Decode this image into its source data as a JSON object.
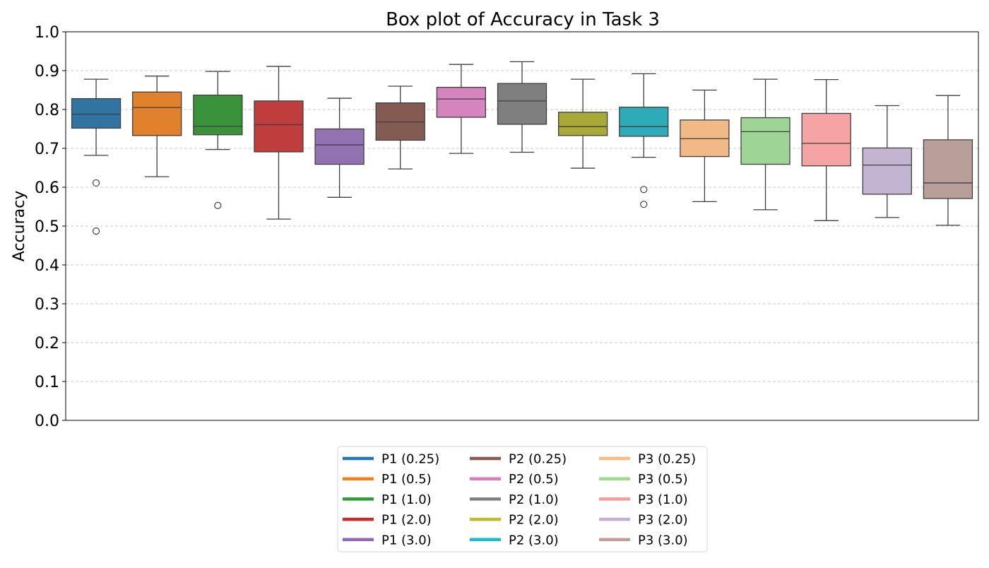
{
  "chart_data": {
    "type": "box",
    "title": "Box plot of Accuracy in Task 3",
    "xlabel": "",
    "ylabel": "Accuracy",
    "ylim": [
      0.0,
      1.0
    ],
    "yticks": [
      0.0,
      0.1,
      0.2,
      0.3,
      0.4,
      0.5,
      0.6,
      0.7,
      0.8,
      0.9,
      1.0
    ],
    "ytick_labels": [
      "0.0",
      "0.1",
      "0.2",
      "0.3",
      "0.4",
      "0.5",
      "0.6",
      "0.7",
      "0.8",
      "0.9",
      "1.0"
    ],
    "grid": "horizontal dashed",
    "legend_position": "bottom-center",
    "series": [
      {
        "name": "P1 (0.25)",
        "color": "#1f77b4",
        "fill": "#3274a1",
        "whisker_low": 0.682,
        "q1": 0.752,
        "median": 0.788,
        "q3": 0.828,
        "whisker_high": 0.878,
        "outliers": [
          0.611,
          0.487
        ]
      },
      {
        "name": "P1 (0.5)",
        "color": "#ff7f0e",
        "fill": "#e1812c",
        "whisker_low": 0.627,
        "q1": 0.733,
        "median": 0.805,
        "q3": 0.845,
        "whisker_high": 0.886,
        "outliers": []
      },
      {
        "name": "P1 (1.0)",
        "color": "#2ca02c",
        "fill": "#3a923a",
        "whisker_low": 0.697,
        "q1": 0.735,
        "median": 0.757,
        "q3": 0.837,
        "whisker_high": 0.898,
        "outliers": [
          0.553
        ]
      },
      {
        "name": "P1 (2.0)",
        "color": "#d62728",
        "fill": "#c03d3e",
        "whisker_low": 0.518,
        "q1": 0.691,
        "median": 0.761,
        "q3": 0.822,
        "whisker_high": 0.911,
        "outliers": []
      },
      {
        "name": "P1 (3.0)",
        "color": "#9467bd",
        "fill": "#9372b2",
        "whisker_low": 0.574,
        "q1": 0.659,
        "median": 0.709,
        "q3": 0.75,
        "whisker_high": 0.829,
        "outliers": []
      },
      {
        "name": "P2 (0.25)",
        "color": "#8c564b",
        "fill": "#845b53",
        "whisker_low": 0.647,
        "q1": 0.721,
        "median": 0.768,
        "q3": 0.817,
        "whisker_high": 0.86,
        "outliers": []
      },
      {
        "name": "P2 (0.5)",
        "color": "#e377c2",
        "fill": "#d684bd",
        "whisker_low": 0.687,
        "q1": 0.78,
        "median": 0.827,
        "q3": 0.857,
        "whisker_high": 0.916,
        "outliers": []
      },
      {
        "name": "P2 (1.0)",
        "color": "#7f7f7f",
        "fill": "#7f7f7f",
        "whisker_low": 0.69,
        "q1": 0.762,
        "median": 0.822,
        "q3": 0.867,
        "whisker_high": 0.923,
        "outliers": []
      },
      {
        "name": "P2 (2.0)",
        "color": "#bcbd22",
        "fill": "#a9aa35",
        "whisker_low": 0.649,
        "q1": 0.733,
        "median": 0.756,
        "q3": 0.793,
        "whisker_high": 0.878,
        "outliers": []
      },
      {
        "name": "P2 (3.0)",
        "color": "#17becf",
        "fill": "#2eabb8",
        "whisker_low": 0.677,
        "q1": 0.731,
        "median": 0.756,
        "q3": 0.806,
        "whisker_high": 0.892,
        "outliers": [
          0.594,
          0.556
        ]
      },
      {
        "name": "P3 (0.25)",
        "color": "#ffbb78",
        "fill": "#f0b985",
        "whisker_low": 0.563,
        "q1": 0.679,
        "median": 0.725,
        "q3": 0.773,
        "whisker_high": 0.85,
        "outliers": []
      },
      {
        "name": "P3 (0.5)",
        "color": "#98df8a",
        "fill": "#9fd594",
        "whisker_low": 0.542,
        "q1": 0.659,
        "median": 0.743,
        "q3": 0.779,
        "whisker_high": 0.878,
        "outliers": []
      },
      {
        "name": "P3 (1.0)",
        "color": "#ff9896",
        "fill": "#f3a4a3",
        "whisker_low": 0.514,
        "q1": 0.655,
        "median": 0.713,
        "q3": 0.79,
        "whisker_high": 0.877,
        "outliers": []
      },
      {
        "name": "P3 (2.0)",
        "color": "#c5b0d5",
        "fill": "#c3b4d1",
        "whisker_low": 0.522,
        "q1": 0.582,
        "median": 0.657,
        "q3": 0.701,
        "whisker_high": 0.81,
        "outliers": []
      },
      {
        "name": "P3 (3.0)",
        "color": "#c49c94",
        "fill": "#b89f99",
        "whisker_low": 0.502,
        "q1": 0.571,
        "median": 0.611,
        "q3": 0.722,
        "whisker_high": 0.836,
        "outliers": []
      }
    ],
    "legend_columns": [
      [
        "P1 (0.25)",
        "P1 (0.5)",
        "P1 (1.0)",
        "P1 (2.0)",
        "P1 (3.0)"
      ],
      [
        "P2 (0.25)",
        "P2 (0.5)",
        "P2 (1.0)",
        "P2 (2.0)",
        "P2 (3.0)"
      ],
      [
        "P3 (0.25)",
        "P3 (0.5)",
        "P3 (1.0)",
        "P3 (2.0)",
        "P3 (3.0)"
      ]
    ]
  }
}
